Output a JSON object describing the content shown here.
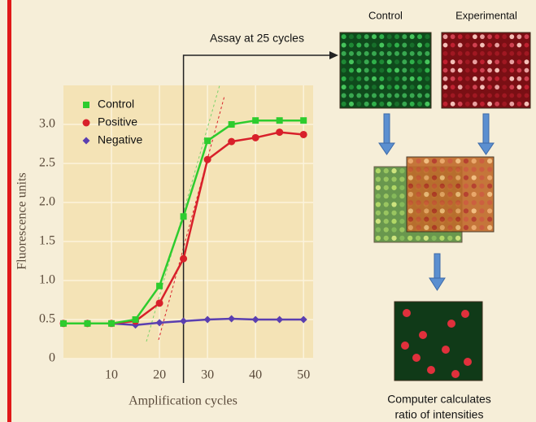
{
  "chart_data": {
    "type": "line",
    "x_label": "Amplification cycles",
    "y_label": "Fluorescence units",
    "x": [
      0,
      5,
      10,
      15,
      20,
      25,
      30,
      35,
      40,
      45,
      50
    ],
    "series": [
      {
        "name": "Control",
        "color": "#2ecc2e",
        "marker": "square",
        "values": [
          0.45,
          0.45,
          0.45,
          0.5,
          0.93,
          1.82,
          2.79,
          3.0,
          3.05,
          3.05,
          3.05
        ]
      },
      {
        "name": "Positive",
        "color": "#d8202a",
        "marker": "circle",
        "values": [
          0.45,
          0.45,
          0.45,
          0.48,
          0.71,
          1.28,
          2.55,
          2.78,
          2.83,
          2.9,
          2.87
        ]
      },
      {
        "name": "Negative",
        "color": "#5a3fb0",
        "marker": "diamond",
        "values": [
          0.45,
          0.45,
          0.45,
          0.43,
          0.46,
          0.48,
          0.5,
          0.51,
          0.5,
          0.5,
          0.5
        ]
      }
    ],
    "xlim": [
      0,
      52
    ],
    "ylim": [
      0,
      3.5
    ],
    "xticks": [
      10,
      20,
      30,
      40,
      50
    ],
    "yticks": [
      0,
      0.5,
      {
        "value": 1,
        "label": "1.0"
      },
      1.5,
      {
        "value": 2,
        "label": "2.0"
      },
      2.5,
      {
        "value": 3,
        "label": "3.0"
      }
    ],
    "grid": true,
    "legend": "upper left",
    "annotation": {
      "text": "Assay at 25 cycles",
      "x": 25
    }
  },
  "diagram": {
    "control_label": "Control",
    "experimental_label": "Experimental",
    "caption_line1": "Computer calculates",
    "caption_line2": "ratio of intensities"
  }
}
